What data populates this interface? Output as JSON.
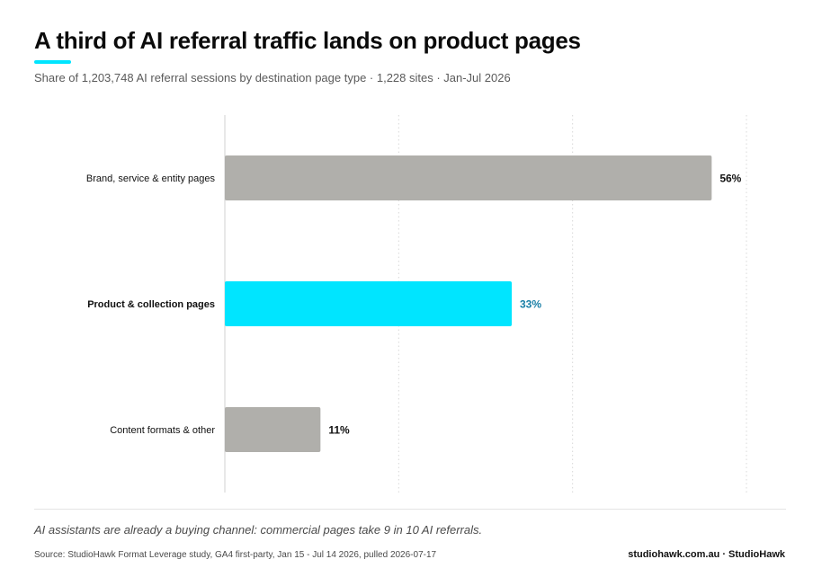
{
  "header": {
    "title": "A third of AI referral traffic lands on product pages",
    "subtitle": "Share of 1,203,748 AI referral sessions by destination page type · 1,228 sites · Jan-Jul 2026"
  },
  "colors": {
    "accent": "#00e5ff",
    "bar_default": "#b0afab",
    "highlight_value_text": "#1a7fa6",
    "value_text": "#111111"
  },
  "chart_data": {
    "type": "bar",
    "orientation": "horizontal",
    "categories": [
      "Brand, service & entity pages",
      "Product & collection pages",
      "Content formats & other"
    ],
    "values": [
      56,
      33,
      11
    ],
    "value_labels": [
      "56%",
      "33%",
      "11%"
    ],
    "highlighted_index": 1,
    "xlim": [
      0,
      60
    ],
    "grid": true,
    "unit": "%"
  },
  "footer": {
    "takeaway": "AI assistants are already a buying channel: commercial pages take 9 in 10 AI referrals.",
    "source": "Source: StudioHawk Format Leverage study, GA4 first-party, Jan 15 - Jul 14 2026, pulled 2026-07-17",
    "brand": "studiohawk.com.au · StudioHawk"
  }
}
